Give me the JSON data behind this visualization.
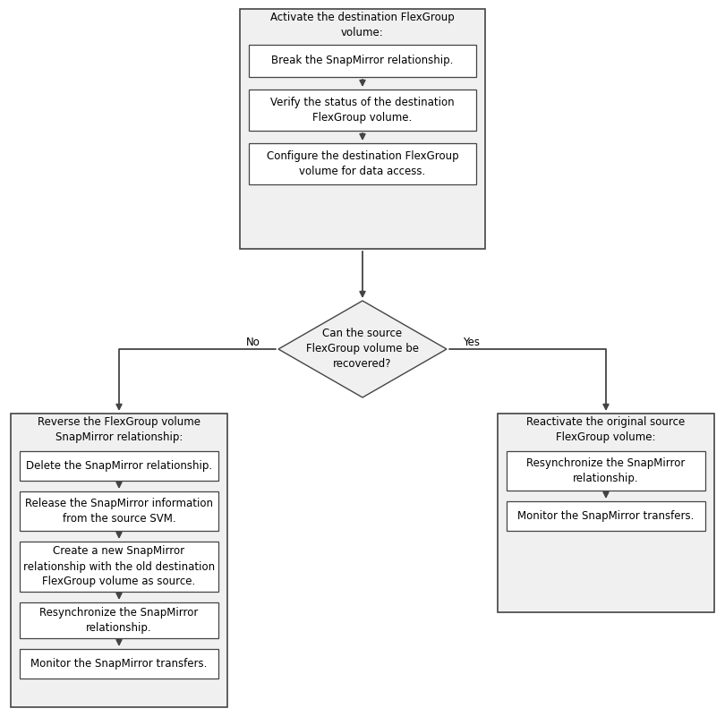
{
  "bg_color": "#ffffff",
  "box_fill": "#ffffff",
  "box_edge": "#444444",
  "outer_fill": "#f0f0f0",
  "outer_edge": "#444444",
  "diamond_fill": "#f0f0f0",
  "diamond_edge": "#444444",
  "arrow_color": "#444444",
  "font_size": 8.5,
  "top_group_title": "Activate the destination FlexGroup\nvolume:",
  "top_box1": "Break the SnapMirror relationship.",
  "top_box2": "Verify the status of the destination\nFlexGroup volume.",
  "top_box3": "Configure the destination FlexGroup\nvolume for data access.",
  "diamond_text": "Can the source\nFlexGroup volume be\nrecovered?",
  "no_label": "No",
  "yes_label": "Yes",
  "left_group_title": "Reverse the FlexGroup volume\nSnapMirror relationship:",
  "left_box1": "Delete the SnapMirror relationship.",
  "left_box2": "Release the SnapMirror information\nfrom the source SVM.",
  "left_box3": "Create a new SnapMirror\nrelationship with the old destination\nFlexGroup volume as source.",
  "left_box4": "Resynchronize the SnapMirror\nrelationship.",
  "left_box5": "Monitor the SnapMirror transfers.",
  "right_group_title": "Reactivate the original source\nFlexGroup volume:",
  "right_box1": "Resynchronize the SnapMirror\nrelationship.",
  "right_box2": "Monitor the SnapMirror transfers."
}
